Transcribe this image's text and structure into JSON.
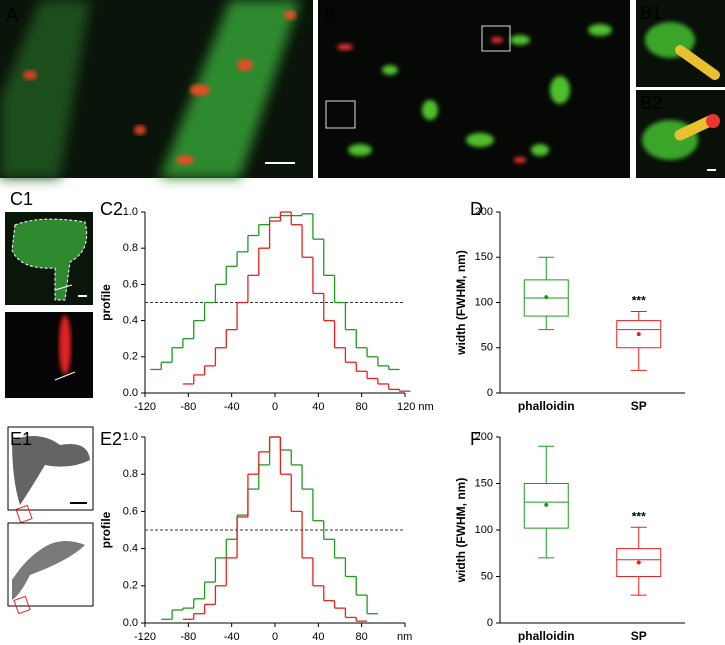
{
  "images": [
    {
      "label": "A"
    },
    {
      "label": "B"
    },
    {
      "label": "B1"
    },
    {
      "label": "B2"
    },
    {
      "label": "C1"
    },
    {
      "label": "E1"
    }
  ],
  "chart_data": [
    {
      "type": "step",
      "label": "C2",
      "ylabel": "profile",
      "xlim": [
        -120,
        120
      ],
      "xticks": [
        -120,
        -80,
        -40,
        0,
        40,
        80,
        {
          "value": 120,
          "label": "120 nm"
        }
      ],
      "ylim": [
        0,
        1
      ],
      "yticks": [
        {
          "value": 0,
          "label": "0.0"
        },
        0.2,
        0.4,
        0.6,
        0.8,
        {
          "value": 1,
          "label": "1.0"
        }
      ],
      "hline": 0.5,
      "series": [
        {
          "color": "#1f9a1f",
          "x": [
            -110,
            -100,
            -90,
            -80,
            -70,
            -60,
            -50,
            -40,
            -30,
            -20,
            -10,
            0,
            10,
            20,
            30,
            40,
            50,
            60,
            70,
            80,
            90,
            100,
            110
          ],
          "values": [
            0.13,
            0.17,
            0.25,
            0.3,
            0.4,
            0.5,
            0.6,
            0.7,
            0.78,
            0.87,
            0.93,
            0.97,
            0.98,
            0.98,
            0.99,
            0.85,
            0.65,
            0.5,
            0.35,
            0.25,
            0.2,
            0.15,
            0.13
          ]
        },
        {
          "color": "#e8221e",
          "x": [
            -80,
            -70,
            -60,
            -50,
            -40,
            -30,
            -20,
            -10,
            0,
            10,
            20,
            30,
            40,
            50,
            60,
            70,
            80,
            90,
            100,
            110,
            120
          ],
          "values": [
            0.05,
            0.1,
            0.15,
            0.25,
            0.35,
            0.5,
            0.65,
            0.8,
            0.95,
            1.0,
            0.93,
            0.75,
            0.55,
            0.4,
            0.25,
            0.17,
            0.12,
            0.08,
            0.05,
            0.02,
            0.01
          ]
        }
      ]
    },
    {
      "type": "box",
      "label": "D",
      "ylabel": "width (FWHM, nm)",
      "ylim": [
        0,
        200
      ],
      "yticks": [
        0,
        50,
        100,
        150,
        200
      ],
      "boxes": [
        {
          "name": "phalloidin",
          "color": "#1f9a1f",
          "min": 70,
          "q1": 85,
          "median": 105,
          "q3": 125,
          "max": 150,
          "mean": 106
        },
        {
          "name": "SP",
          "color": "#e8221e",
          "min": 25,
          "q1": 50,
          "median": 70,
          "q3": 80,
          "max": 90,
          "mean": 65,
          "annotation": "***"
        }
      ]
    },
    {
      "type": "step",
      "label": "E2",
      "ylabel": "profile",
      "xlim": [
        -120,
        120
      ],
      "xticks": [
        -120,
        -80,
        -40,
        0,
        40,
        80,
        {
          "value": 120,
          "label": "nm"
        }
      ],
      "ylim": [
        0,
        1
      ],
      "yticks": [
        {
          "value": 0,
          "label": "0.0"
        },
        0.2,
        0.4,
        0.6,
        0.8,
        {
          "value": 1,
          "label": "1.0"
        }
      ],
      "hline": 0.5,
      "series": [
        {
          "color": "#1f9a1f",
          "x": [
            -100,
            -90,
            -80,
            -70,
            -60,
            -50,
            -40,
            -30,
            -20,
            -10,
            0,
            10,
            20,
            30,
            40,
            50,
            60,
            70,
            80,
            90
          ],
          "values": [
            0.02,
            0.07,
            0.08,
            0.13,
            0.22,
            0.35,
            0.45,
            0.58,
            0.72,
            0.85,
            1.0,
            0.93,
            0.85,
            0.72,
            0.55,
            0.45,
            0.35,
            0.25,
            0.15,
            0.05
          ]
        },
        {
          "color": "#e8221e",
          "x": [
            -80,
            -70,
            -60,
            -50,
            -40,
            -30,
            -20,
            -10,
            0,
            10,
            20,
            30,
            40,
            50,
            60,
            70,
            80
          ],
          "values": [
            0.02,
            0.05,
            0.1,
            0.2,
            0.35,
            0.57,
            0.8,
            0.92,
            1.0,
            0.8,
            0.6,
            0.35,
            0.2,
            0.12,
            0.08,
            0.03,
            0.01
          ]
        }
      ]
    },
    {
      "type": "box",
      "label": "F",
      "ylabel": "width (FWHM, nm)",
      "ylim": [
        0,
        200
      ],
      "yticks": [
        0,
        50,
        100,
        150,
        200
      ],
      "boxes": [
        {
          "name": "phalloidin",
          "color": "#1f9a1f",
          "min": 70,
          "q1": 102,
          "median": 130,
          "q3": 150,
          "max": 190,
          "mean": 127
        },
        {
          "name": "SP",
          "color": "#e8221e",
          "min": 30,
          "q1": 50,
          "median": 68,
          "q3": 80,
          "max": 103,
          "mean": 65,
          "annotation": "***"
        }
      ]
    }
  ]
}
